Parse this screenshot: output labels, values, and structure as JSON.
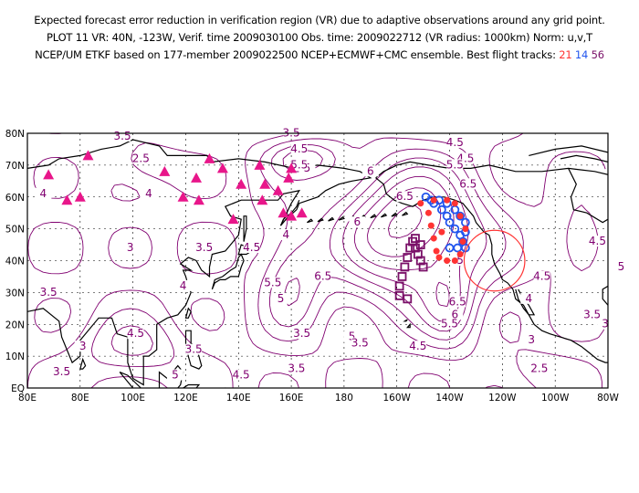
{
  "header": {
    "line1": "Expected forecast error reduction in verification region (VR) due to adaptive observations around any grid point.",
    "line2": "PLOT 11 VR: 40N, -123W, Verif. time 2009030100 Obs. time: 2009022712 (VR radius: 1000km) Norm: u,v,T",
    "line3_prefix": "NCEP/UM ETKF based on 177-member 2009022500 NCEP+ECMWF+CMC ensemble. Best flight tracks:",
    "track_21": "21",
    "track_14": "14",
    "track_56": "56"
  },
  "colors": {
    "contour": "#800070",
    "coast": "#000000",
    "grid": "#000000",
    "triangle": "#e8168a",
    "track_21": "#ff3333",
    "track_14": "#2255ee",
    "track_56": "#7a1068",
    "vr_circle": "#ff3333"
  },
  "axes": {
    "lat_labels": [
      "80N",
      "70N",
      "60N",
      "50N",
      "40N",
      "30N",
      "20N",
      "10N",
      "EQ"
    ],
    "lon_labels": [
      "80E",
      "80E",
      "100E",
      "120E",
      "140E",
      "160E",
      "180",
      "160W",
      "140W",
      "120W",
      "100W",
      "80W"
    ]
  },
  "contour_labels": [
    {
      "text": "3.5",
      "lon": 96,
      "lat": 78
    },
    {
      "text": "3.5",
      "lon": 160,
      "lat": 79
    },
    {
      "text": "2.5",
      "lon": 103,
      "lat": 71
    },
    {
      "text": "4.5",
      "lon": 163,
      "lat": 74
    },
    {
      "text": "4.5",
      "lon": 222,
      "lat": 76
    },
    {
      "text": "4.5",
      "lon": 226,
      "lat": 71
    },
    {
      "text": "5",
      "lon": 166,
      "lat": 68
    },
    {
      "text": "5.5",
      "lon": 163,
      "lat": 69
    },
    {
      "text": "5.5",
      "lon": 222,
      "lat": 69
    },
    {
      "text": "6",
      "lon": 190,
      "lat": 67
    },
    {
      "text": "6.5",
      "lon": 227,
      "lat": 63
    },
    {
      "text": "6.5",
      "lon": 203,
      "lat": 59
    },
    {
      "text": "6",
      "lon": 185,
      "lat": 51
    },
    {
      "text": "4",
      "lon": 66,
      "lat": 60
    },
    {
      "text": "4",
      "lon": 106,
      "lat": 60
    },
    {
      "text": "4",
      "lon": 158,
      "lat": 47
    },
    {
      "text": "3",
      "lon": 99,
      "lat": 43
    },
    {
      "text": "3.5",
      "lon": 127,
      "lat": 43
    },
    {
      "text": "4.5",
      "lon": 145,
      "lat": 43
    },
    {
      "text": "5",
      "lon": 224,
      "lat": 39
    },
    {
      "text": "4.5",
      "lon": 276,
      "lat": 45
    },
    {
      "text": "5",
      "lon": 285,
      "lat": 37
    },
    {
      "text": "4.5",
      "lon": 255,
      "lat": 34
    },
    {
      "text": "4",
      "lon": 250,
      "lat": 27
    },
    {
      "text": "6.5",
      "lon": 172,
      "lat": 34
    },
    {
      "text": "5.5",
      "lon": 153,
      "lat": 32
    },
    {
      "text": "5",
      "lon": 156,
      "lat": 27
    },
    {
      "text": "4",
      "lon": 119,
      "lat": 31
    },
    {
      "text": "3.5",
      "lon": 68,
      "lat": 29
    },
    {
      "text": "6.5",
      "lon": 223,
      "lat": 26
    },
    {
      "text": "6",
      "lon": 222,
      "lat": 22
    },
    {
      "text": "5.5",
      "lon": 220,
      "lat": 19
    },
    {
      "text": "3.5",
      "lon": 274,
      "lat": 22
    },
    {
      "text": "3",
      "lon": 279,
      "lat": 19
    },
    {
      "text": "3.5",
      "lon": 164,
      "lat": 16
    },
    {
      "text": "5",
      "lon": 183,
      "lat": 15
    },
    {
      "text": "3.5",
      "lon": 186,
      "lat": 13
    },
    {
      "text": "4.5",
      "lon": 208,
      "lat": 12
    },
    {
      "text": "4.5",
      "lon": 101,
      "lat": 16
    },
    {
      "text": "3.5",
      "lon": 123,
      "lat": 11
    },
    {
      "text": "3",
      "lon": 81,
      "lat": 12
    },
    {
      "text": "3.5",
      "lon": 73,
      "lat": 4
    },
    {
      "text": "5",
      "lon": 116,
      "lat": 3
    },
    {
      "text": "4.5",
      "lon": 141,
      "lat": 3
    },
    {
      "text": "3.5",
      "lon": 162,
      "lat": 5
    },
    {
      "text": "2.5",
      "lon": 254,
      "lat": 5
    },
    {
      "text": "3",
      "lon": 251,
      "lat": 14
    }
  ],
  "triangles": [
    [
      68,
      67
    ],
    [
      75,
      59
    ],
    [
      83,
      73
    ],
    [
      80,
      60
    ],
    [
      112,
      68
    ],
    [
      124,
      66
    ],
    [
      119,
      60
    ],
    [
      129,
      72
    ],
    [
      134,
      69
    ],
    [
      125,
      59
    ],
    [
      138,
      53
    ],
    [
      141,
      64
    ],
    [
      148,
      70
    ],
    [
      149,
      59
    ],
    [
      155,
      62
    ],
    [
      159,
      66
    ],
    [
      160,
      69
    ],
    [
      160,
      54
    ],
    [
      157,
      55
    ],
    [
      164,
      55
    ],
    [
      150,
      64
    ]
  ],
  "track_21_pts": [
    [
      209,
      58
    ],
    [
      212,
      55
    ],
    [
      213,
      51
    ],
    [
      214,
      47
    ],
    [
      215,
      43
    ],
    [
      216,
      41
    ],
    [
      219,
      40
    ],
    [
      222,
      40
    ],
    [
      224,
      42
    ],
    [
      225,
      46
    ],
    [
      226,
      50
    ],
    [
      224,
      54
    ],
    [
      222,
      58
    ],
    [
      219,
      59
    ],
    [
      214,
      59
    ],
    [
      217,
      49
    ]
  ],
  "track_14_pts": [
    [
      211,
      60
    ],
    [
      214,
      58
    ],
    [
      217,
      56
    ],
    [
      219,
      54
    ],
    [
      220,
      52
    ],
    [
      222,
      50
    ],
    [
      224,
      48
    ],
    [
      225,
      46
    ],
    [
      226,
      44
    ],
    [
      223,
      44
    ],
    [
      220,
      44
    ],
    [
      213,
      59
    ],
    [
      216,
      59
    ],
    [
      219,
      58
    ],
    [
      222,
      56
    ],
    [
      224,
      54
    ],
    [
      226,
      52
    ],
    [
      226,
      49
    ]
  ],
  "track_56_pts": [
    [
      201,
      29
    ],
    [
      201,
      32
    ],
    [
      202,
      35
    ],
    [
      203,
      38
    ],
    [
      204,
      41
    ],
    [
      205,
      44
    ],
    [
      206,
      46
    ],
    [
      207,
      44
    ],
    [
      208,
      42
    ],
    [
      209,
      40
    ],
    [
      210,
      38
    ],
    [
      209,
      45
    ],
    [
      207,
      47
    ],
    [
      204,
      28
    ]
  ],
  "vr_circle": {
    "lon": 237,
    "lat": 40,
    "radius_deg": 11.5
  }
}
